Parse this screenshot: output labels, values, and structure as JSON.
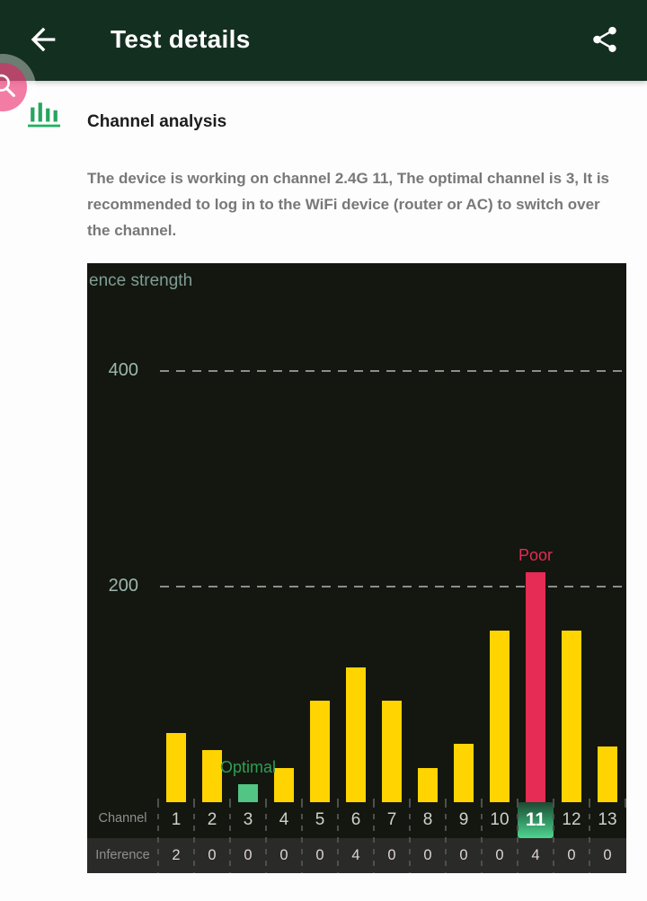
{
  "header": {
    "title": "Test details"
  },
  "section": {
    "heading": "Channel analysis",
    "description": "The device is working on channel 2.4G 11, The optimal channel is 3, It is recommended to log in to the WiFi device (router or AC) to switch over the channel."
  },
  "chart_data": {
    "type": "bar",
    "title": "ence strength",
    "ylim": [
      0,
      500
    ],
    "yticks": [
      200,
      400
    ],
    "grid": "horizontal-dashed",
    "legend": "none",
    "categories": [
      "1",
      "2",
      "3",
      "4",
      "5",
      "6",
      "7",
      "8",
      "9",
      "10",
      "11",
      "12",
      "13"
    ],
    "series": [
      {
        "name": "Interference strength",
        "values": [
          64,
          48,
          17,
          32,
          94,
          125,
          94,
          32,
          54,
          159,
          213,
          159,
          52
        ]
      }
    ],
    "channel_row_label": "Channel",
    "inference_row_label": "Inference",
    "inference_values": [
      "2",
      "0",
      "0",
      "0",
      "0",
      "4",
      "0",
      "0",
      "0",
      "0",
      "4",
      "0",
      "0"
    ],
    "selected_channel": "11",
    "annotations": [
      {
        "text": "Poor",
        "channel": "11",
        "color": "#e62b54"
      },
      {
        "text": "Optimal",
        "channel": "3",
        "color": "#2f9e52"
      }
    ],
    "colors": {
      "bar_default": "#ffd400",
      "bar_poor": "#e62b54",
      "bar_optimal": "#52c483",
      "background": "#131710",
      "title_text": "#7f9e95"
    }
  }
}
